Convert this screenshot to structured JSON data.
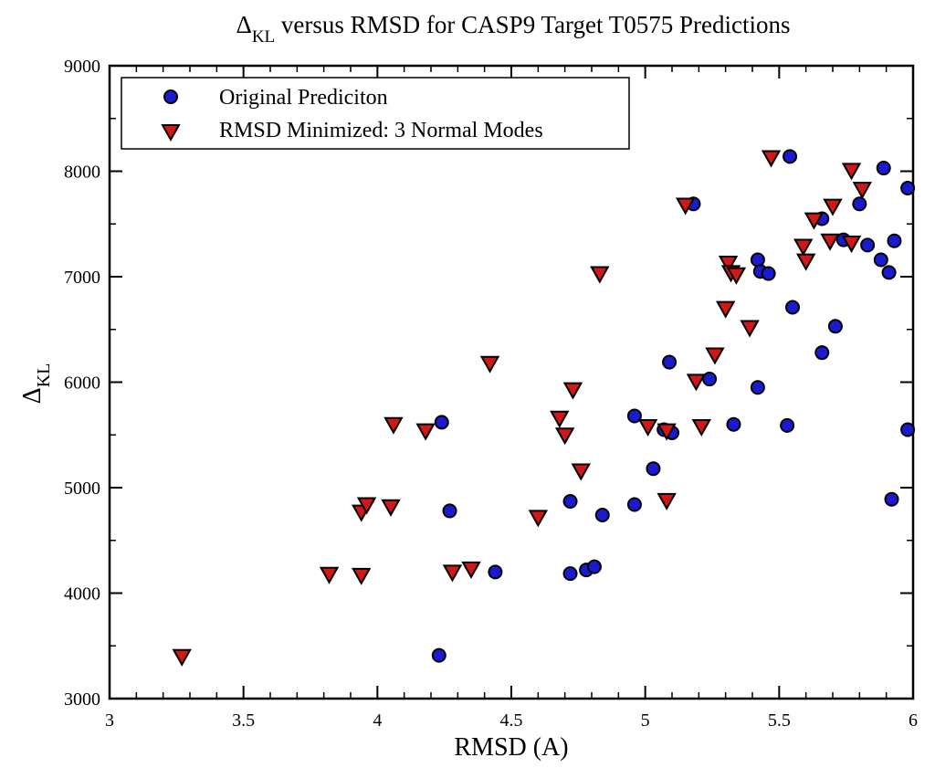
{
  "chart_data": {
    "type": "scatter",
    "title": {
      "prefix": "Δ",
      "subscript": "KL",
      "rest": " versus RMSD for CASP9 Target T0575 Predictions"
    },
    "xlabel": "RMSD (A)",
    "ylabel": {
      "symbol": "Δ",
      "subscript": "KL"
    },
    "xlim": [
      3,
      6
    ],
    "ylim": [
      3000,
      9000
    ],
    "xticks": [
      3,
      3.5,
      4,
      4.5,
      5,
      5.5,
      6
    ],
    "xtick_labels": [
      "3",
      "3.5",
      "4",
      "4.5",
      "5",
      "5.5",
      "6"
    ],
    "yticks": [
      3000,
      4000,
      5000,
      6000,
      7000,
      8000,
      9000
    ],
    "ytick_labels": [
      "3000",
      "4000",
      "5000",
      "6000",
      "7000",
      "8000",
      "9000"
    ],
    "grid": false,
    "legend_position": "top-left",
    "series": [
      {
        "name": "Original Prediciton",
        "marker": "circle",
        "color": "#1a1ad0",
        "edge_color": "#000000",
        "points": [
          [
            4.24,
            5620
          ],
          [
            4.27,
            4780
          ],
          [
            4.23,
            3410
          ],
          [
            4.44,
            4200
          ],
          [
            4.72,
            4870
          ],
          [
            4.72,
            4185
          ],
          [
            4.78,
            4220
          ],
          [
            4.81,
            4250
          ],
          [
            4.84,
            4740
          ],
          [
            4.96,
            5680
          ],
          [
            4.96,
            4840
          ],
          [
            5.03,
            5180
          ],
          [
            5.07,
            5550
          ],
          [
            5.09,
            6190
          ],
          [
            5.1,
            5520
          ],
          [
            5.18,
            7690
          ],
          [
            5.24,
            6030
          ],
          [
            5.33,
            5600
          ],
          [
            5.42,
            7160
          ],
          [
            5.43,
            7050
          ],
          [
            5.42,
            5950
          ],
          [
            5.46,
            7030
          ],
          [
            5.53,
            5590
          ],
          [
            5.54,
            8140
          ],
          [
            5.55,
            6710
          ],
          [
            5.66,
            7550
          ],
          [
            5.66,
            6280
          ],
          [
            5.71,
            6530
          ],
          [
            5.74,
            7350
          ],
          [
            5.8,
            7690
          ],
          [
            5.83,
            7300
          ],
          [
            5.88,
            7160
          ],
          [
            5.89,
            8030
          ],
          [
            5.91,
            7040
          ],
          [
            5.93,
            7340
          ],
          [
            5.92,
            4890
          ],
          [
            5.98,
            7840
          ],
          [
            5.98,
            5550
          ]
        ]
      },
      {
        "name": "RMSD Minimized: 3 Normal Modes",
        "marker": "triangle-down",
        "color": "#d01818",
        "edge_color": "#000000",
        "points": [
          [
            3.27,
            3400
          ],
          [
            3.82,
            4180
          ],
          [
            3.94,
            4170
          ],
          [
            3.94,
            4770
          ],
          [
            3.96,
            4840
          ],
          [
            4.05,
            4820
          ],
          [
            4.06,
            5600
          ],
          [
            4.18,
            5540
          ],
          [
            4.28,
            4200
          ],
          [
            4.35,
            4230
          ],
          [
            4.42,
            6180
          ],
          [
            4.6,
            4720
          ],
          [
            4.68,
            5660
          ],
          [
            4.7,
            5500
          ],
          [
            4.73,
            5930
          ],
          [
            4.76,
            5160
          ],
          [
            4.83,
            7030
          ],
          [
            5.01,
            5580
          ],
          [
            5.08,
            5540
          ],
          [
            5.08,
            4880
          ],
          [
            5.15,
            7680
          ],
          [
            5.19,
            6010
          ],
          [
            5.21,
            5580
          ],
          [
            5.26,
            6260
          ],
          [
            5.3,
            6700
          ],
          [
            5.31,
            7130
          ],
          [
            5.32,
            7040
          ],
          [
            5.34,
            7020
          ],
          [
            5.39,
            6520
          ],
          [
            5.47,
            8130
          ],
          [
            5.59,
            7290
          ],
          [
            5.6,
            7150
          ],
          [
            5.63,
            7540
          ],
          [
            5.69,
            7340
          ],
          [
            5.7,
            7670
          ],
          [
            5.77,
            8010
          ],
          [
            5.77,
            7320
          ],
          [
            5.81,
            7830
          ]
        ]
      }
    ]
  }
}
